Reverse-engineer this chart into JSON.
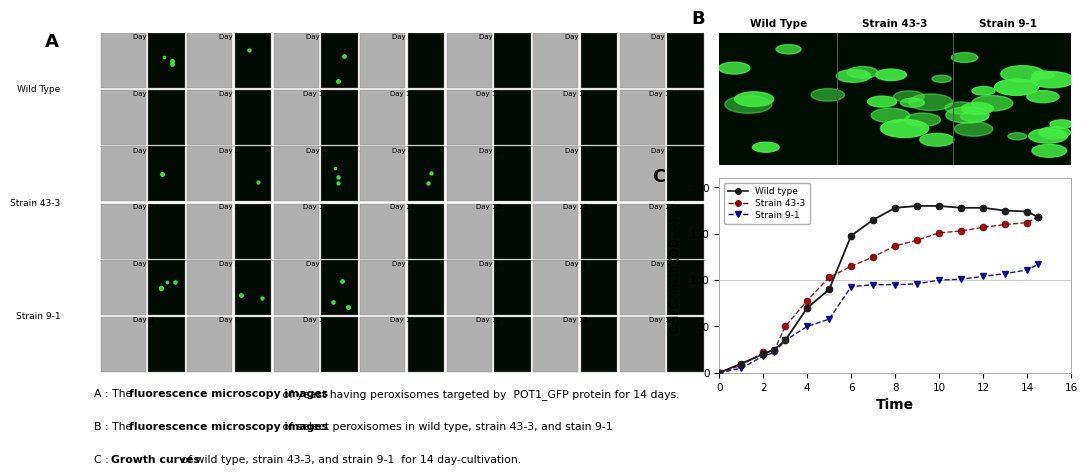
{
  "panel_A_label": "A",
  "panel_B_label": "B",
  "panel_C_label": "C",
  "wild_type_x": [
    0,
    1,
    2,
    2.5,
    3,
    4,
    5,
    6,
    7,
    8,
    9,
    10,
    11,
    12,
    13,
    14,
    14.5
  ],
  "wild_type_y": [
    0,
    10,
    20,
    25,
    35,
    70,
    90,
    148,
    165,
    178,
    180,
    180,
    178,
    178,
    175,
    174,
    168
  ],
  "strain43_x": [
    0,
    1,
    2,
    2.5,
    3,
    4,
    5,
    6,
    7,
    8,
    9,
    10,
    11,
    12,
    13,
    14,
    14.5
  ],
  "strain43_y": [
    0,
    8,
    22,
    24,
    50,
    78,
    103,
    115,
    125,
    137,
    143,
    151,
    153,
    157,
    160,
    162,
    168
  ],
  "strain91_x": [
    0,
    1,
    2,
    2.5,
    3,
    4,
    5,
    6,
    7,
    8,
    9,
    10,
    11,
    12,
    13,
    14,
    14.5
  ],
  "strain91_y": [
    0,
    5,
    18,
    22,
    35,
    50,
    58,
    93,
    95,
    95,
    96,
    100,
    101,
    104,
    107,
    111,
    117
  ],
  "wt_color": "#1a1a1a",
  "s43_color": "#8B0000",
  "s91_color": "#00008B",
  "ylim": [
    0,
    210
  ],
  "xlim": [
    0,
    16
  ],
  "yticks": [
    0,
    50,
    100,
    150,
    200
  ],
  "xticks": [
    0,
    2,
    4,
    6,
    8,
    10,
    12,
    14,
    16
  ],
  "legend_labels": [
    "Wild type",
    "Strain 43-3",
    "Strain 9-1"
  ],
  "b_labels": [
    "Wild Type",
    "Strain 43-3",
    "Strain 9-1"
  ],
  "row_labels": [
    "Wild Type",
    "Strain 43-3",
    "Strain 9-1"
  ],
  "background_color": "#ffffff",
  "brightfield_color": "#b8b8b8",
  "fluor_color": "#050f05",
  "green_dot_color": "#44ee44"
}
